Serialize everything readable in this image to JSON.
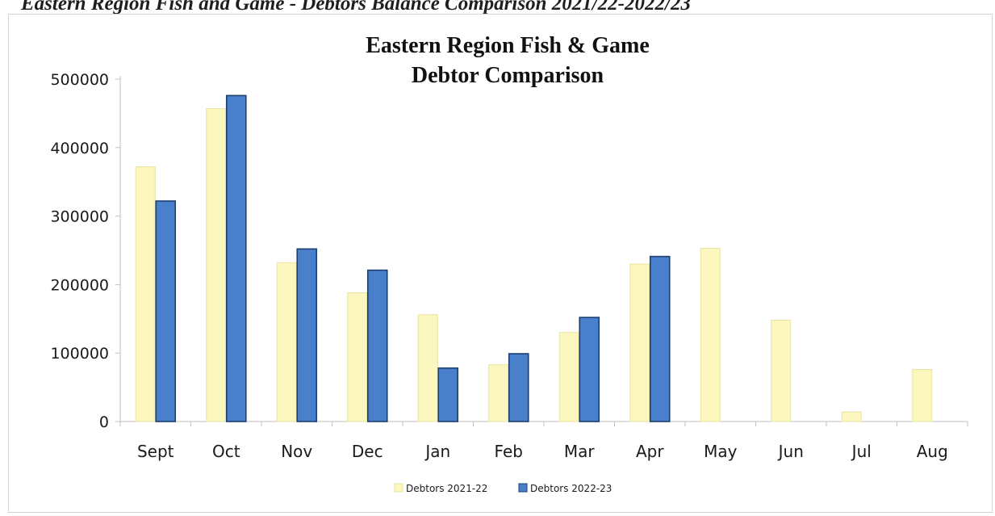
{
  "page": {
    "heading": "Eastern Region Fish and Game - Debtors Balance Comparison 2021/22-2022/23"
  },
  "colors": {
    "series_2021_22_fill": "#fbf7bf",
    "series_2021_22_stroke": "#e9e3a0",
    "series_2022_23_fill": "#4a7fcb",
    "series_2022_23_stroke": "#1d3f6e",
    "axis": "#bfbfbf"
  },
  "chart_data": {
    "type": "bar",
    "title": "Eastern Region Fish & Game",
    "subtitle": "Debtor Comparison",
    "xlabel": "",
    "ylabel": "",
    "ylim": [
      0,
      500000
    ],
    "yticks": [
      0,
      100000,
      200000,
      300000,
      400000,
      500000
    ],
    "ytick_labels": [
      "0",
      "100000",
      "200000",
      "300000",
      "400000",
      "500000"
    ],
    "grid": false,
    "legend_position": "bottom",
    "categories": [
      "Sept",
      "Oct",
      "Nov",
      "Dec",
      "Jan",
      "Feb",
      "Mar",
      "Apr",
      "May",
      "Jun",
      "Jul",
      "Aug"
    ],
    "series": [
      {
        "name": "Debtors 2021-22",
        "values": [
          372000,
          457000,
          232000,
          188000,
          156000,
          83000,
          130000,
          230000,
          253000,
          148000,
          14000,
          76000
        ]
      },
      {
        "name": "Debtors 2022-23",
        "values": [
          322000,
          476000,
          252000,
          221000,
          78000,
          99000,
          152000,
          241000,
          null,
          null,
          null,
          null
        ]
      }
    ]
  }
}
